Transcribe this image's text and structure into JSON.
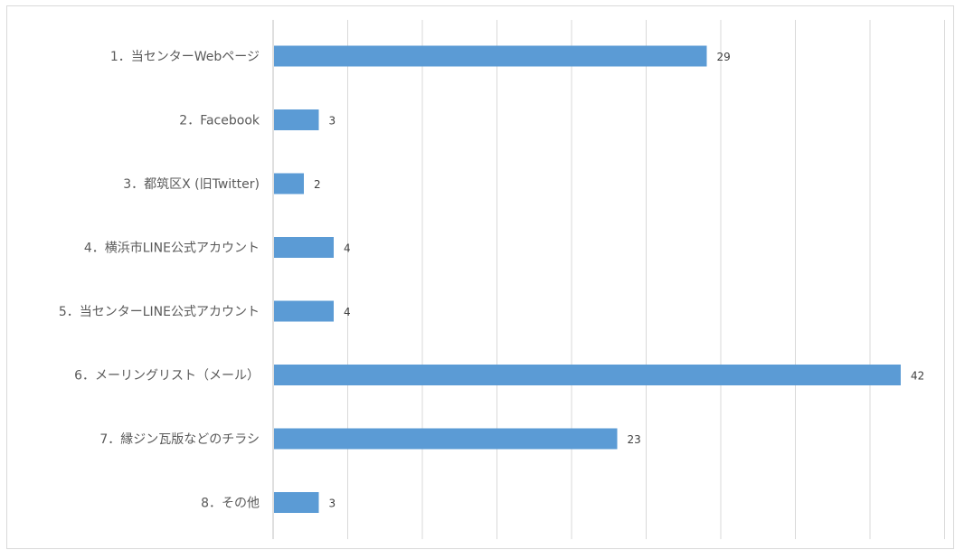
{
  "chart_data": {
    "type": "bar",
    "orientation": "horizontal",
    "categories": [
      "1．当センターWebページ",
      "2．Facebook",
      "3．都筑区X (旧Twitter)",
      "4．横浜市LINE公式アカウント",
      "5．当センターLINE公式アカウント",
      "6．メーリングリスト（メール）",
      "7．縁ジン瓦版などのチラシ",
      "8．その他"
    ],
    "values": [
      29,
      3,
      2,
      4,
      4,
      42,
      23,
      3
    ],
    "xlim": [
      0,
      45
    ],
    "grid": true,
    "bar_color": "#5b9bd5",
    "data_labels": true,
    "title": "",
    "xlabel": "",
    "ylabel": ""
  }
}
